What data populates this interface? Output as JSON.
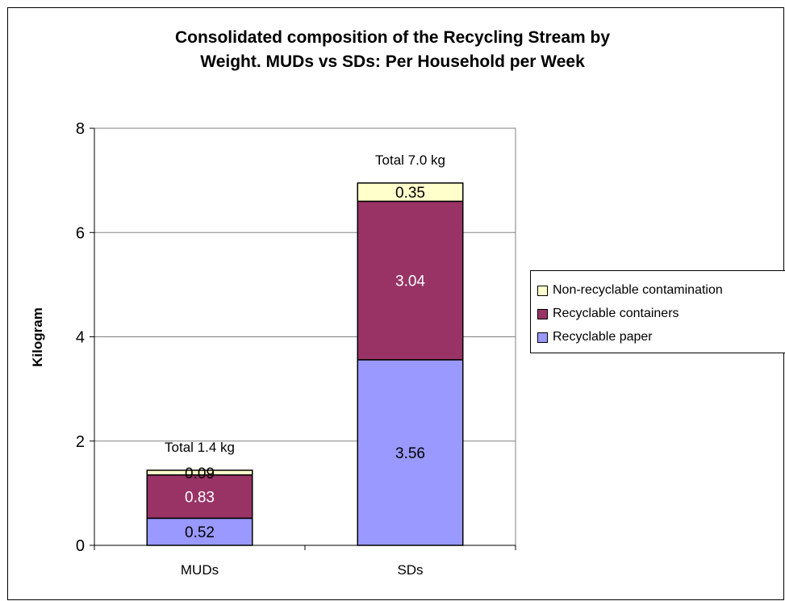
{
  "chart_data": {
    "type": "bar",
    "stacked": true,
    "title_lines": [
      "Consolidated composition of the Recycling Stream by",
      "Weight. MUDs vs SDs: Per Household per Week"
    ],
    "xlabel": "",
    "ylabel": "Kilogram",
    "ylim": [
      0,
      8
    ],
    "yticks": [
      "0",
      "2",
      "4",
      "6",
      "8"
    ],
    "grid": true,
    "legend_position": "right",
    "categories": [
      "MUDs",
      "SDs"
    ],
    "series": [
      {
        "name": "Recyclable paper",
        "values": [
          0.52,
          3.56
        ],
        "labels": [
          "0.52",
          "3.56"
        ],
        "color": "#9999ff",
        "label_color": "#000000"
      },
      {
        "name": "Recyclable containers",
        "values": [
          0.83,
          3.04
        ],
        "labels": [
          "0.83",
          "3.04"
        ],
        "color": "#993366",
        "label_color": "#ffffff"
      },
      {
        "name": "Non-recyclable contamination",
        "values": [
          0.09,
          0.35
        ],
        "labels": [
          "0.09",
          "0.35"
        ],
        "color": "#ffffcc",
        "label_color": "#000000"
      }
    ],
    "totals": [
      "Total 1.4 kg",
      "Total 7.0 kg"
    ]
  }
}
